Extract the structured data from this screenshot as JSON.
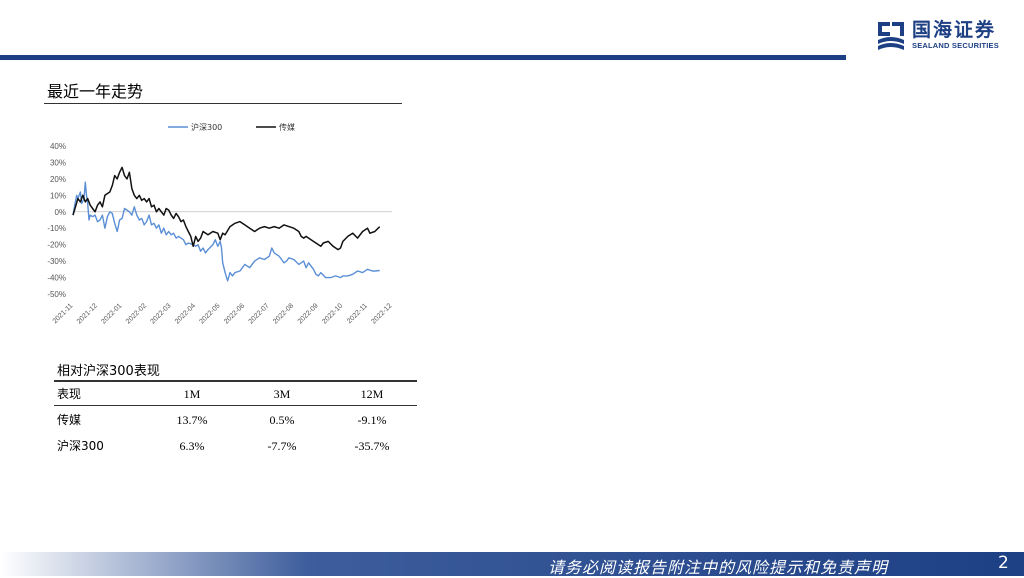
{
  "header": {
    "logo_cn": "国海证券",
    "logo_en": "SEALAND SECURITIES",
    "brand_color": "#1d3f84"
  },
  "section_title": "最近一年走势",
  "chart_data": {
    "type": "line",
    "title": "",
    "xlabel": "",
    "ylabel": "",
    "ylim": [
      -50,
      40
    ],
    "yticks": [
      40,
      30,
      20,
      10,
      0,
      -10,
      -20,
      -30,
      -40,
      -50
    ],
    "ytick_labels": [
      "40%",
      "30%",
      "20%",
      "10%",
      "0%",
      "-10%",
      "-20%",
      "-30%",
      "-40%",
      "-50%"
    ],
    "x_ticks": [
      "2021-11",
      "2021-12",
      "2022-01",
      "2022-02",
      "2022-03",
      "2022-04",
      "2022-05",
      "2022-06",
      "2022-07",
      "2022-08",
      "2022-09",
      "2022-10",
      "2022-11",
      "2022-12"
    ],
    "legend_position": "top-center",
    "grid": false,
    "series": [
      {
        "name": "沪深300",
        "color": "#5b8fd6",
        "points": [
          [
            0,
            -2
          ],
          [
            0.08,
            5
          ],
          [
            0.15,
            10
          ],
          [
            0.2,
            8
          ],
          [
            0.3,
            12
          ],
          [
            0.35,
            5
          ],
          [
            0.45,
            8
          ],
          [
            0.5,
            18
          ],
          [
            0.55,
            10
          ],
          [
            0.6,
            5
          ],
          [
            0.65,
            -5
          ],
          [
            0.7,
            -2
          ],
          [
            0.8,
            -3
          ],
          [
            0.9,
            -2
          ],
          [
            1,
            -6
          ],
          [
            1.1,
            -5
          ],
          [
            1.2,
            -2
          ],
          [
            1.3,
            -10
          ],
          [
            1.4,
            -3
          ],
          [
            1.5,
            0
          ],
          [
            1.6,
            -1
          ],
          [
            1.7,
            -7
          ],
          [
            1.8,
            -12
          ],
          [
            1.9,
            -5
          ],
          [
            2,
            -4
          ],
          [
            2.1,
            2
          ],
          [
            2.2,
            1
          ],
          [
            2.3,
            0
          ],
          [
            2.4,
            -2
          ],
          [
            2.5,
            3
          ],
          [
            2.6,
            -2
          ],
          [
            2.7,
            -5
          ],
          [
            2.8,
            -4
          ],
          [
            2.9,
            -8
          ],
          [
            3,
            -6
          ],
          [
            3.1,
            -2
          ],
          [
            3.2,
            -8
          ],
          [
            3.3,
            -7
          ],
          [
            3.4,
            -10
          ],
          [
            3.5,
            -8
          ],
          [
            3.6,
            -13
          ],
          [
            3.7,
            -10
          ],
          [
            3.8,
            -14
          ],
          [
            3.9,
            -12
          ],
          [
            4,
            -14
          ],
          [
            4.1,
            -13
          ],
          [
            4.2,
            -16
          ],
          [
            4.3,
            -15
          ],
          [
            4.5,
            -17
          ],
          [
            4.6,
            -20
          ],
          [
            4.7,
            -19
          ],
          [
            4.9,
            -20
          ],
          [
            5,
            -21
          ],
          [
            5.1,
            -20
          ],
          [
            5.2,
            -24
          ],
          [
            5.3,
            -22
          ],
          [
            5.4,
            -25
          ],
          [
            5.5,
            -23
          ],
          [
            5.7,
            -20
          ],
          [
            5.8,
            -17
          ],
          [
            5.9,
            -21
          ],
          [
            6,
            -18
          ],
          [
            6.05,
            -22
          ],
          [
            6.1,
            -31
          ],
          [
            6.2,
            -37
          ],
          [
            6.3,
            -42
          ],
          [
            6.4,
            -37
          ],
          [
            6.5,
            -39
          ],
          [
            6.6,
            -37
          ],
          [
            6.8,
            -36
          ],
          [
            7,
            -32
          ],
          [
            7.2,
            -34
          ],
          [
            7.4,
            -30
          ],
          [
            7.6,
            -28
          ],
          [
            7.8,
            -29
          ],
          [
            8,
            -27
          ],
          [
            8.1,
            -22
          ],
          [
            8.2,
            -25
          ],
          [
            8.4,
            -27
          ],
          [
            8.5,
            -29
          ],
          [
            8.6,
            -31
          ],
          [
            8.7,
            -30
          ],
          [
            8.8,
            -28
          ],
          [
            9,
            -29
          ],
          [
            9.2,
            -32
          ],
          [
            9.4,
            -30
          ],
          [
            9.5,
            -34
          ],
          [
            9.6,
            -31
          ],
          [
            9.8,
            -35
          ],
          [
            9.9,
            -38
          ],
          [
            10,
            -39
          ],
          [
            10.1,
            -37
          ],
          [
            10.3,
            -40
          ],
          [
            10.5,
            -40
          ],
          [
            10.7,
            -39
          ],
          [
            10.9,
            -40
          ],
          [
            11,
            -39
          ],
          [
            11.2,
            -39
          ],
          [
            11.4,
            -38
          ],
          [
            11.6,
            -36
          ],
          [
            11.8,
            -37
          ],
          [
            12,
            -35
          ],
          [
            12.2,
            -36
          ],
          [
            12.3,
            -36
          ],
          [
            12.5,
            -35.7
          ]
        ]
      },
      {
        "name": "传媒",
        "color": "#111111",
        "points": [
          [
            0,
            -2
          ],
          [
            0.1,
            3
          ],
          [
            0.2,
            8
          ],
          [
            0.3,
            6
          ],
          [
            0.4,
            10
          ],
          [
            0.5,
            6
          ],
          [
            0.6,
            8
          ],
          [
            0.7,
            4
          ],
          [
            0.8,
            2
          ],
          [
            0.9,
            0
          ],
          [
            1,
            4
          ],
          [
            1.1,
            6
          ],
          [
            1.2,
            3
          ],
          [
            1.3,
            10
          ],
          [
            1.5,
            12
          ],
          [
            1.6,
            16
          ],
          [
            1.7,
            22
          ],
          [
            1.8,
            20
          ],
          [
            1.9,
            24
          ],
          [
            2,
            27
          ],
          [
            2.1,
            22
          ],
          [
            2.2,
            20
          ],
          [
            2.3,
            24
          ],
          [
            2.4,
            14
          ],
          [
            2.5,
            10
          ],
          [
            2.6,
            8
          ],
          [
            2.7,
            10
          ],
          [
            2.8,
            7
          ],
          [
            2.9,
            8
          ],
          [
            3,
            6
          ],
          [
            3.1,
            8
          ],
          [
            3.2,
            3
          ],
          [
            3.3,
            4
          ],
          [
            3.4,
            0
          ],
          [
            3.5,
            2
          ],
          [
            3.6,
            0
          ],
          [
            3.7,
            -2
          ],
          [
            3.8,
            2
          ],
          [
            3.9,
            1
          ],
          [
            4,
            -2
          ],
          [
            4.1,
            -4
          ],
          [
            4.2,
            -1
          ],
          [
            4.3,
            -3
          ],
          [
            4.4,
            -6
          ],
          [
            4.5,
            -5
          ],
          [
            4.6,
            -9
          ],
          [
            4.7,
            -12
          ],
          [
            4.8,
            -15
          ],
          [
            4.9,
            -21
          ],
          [
            5,
            -15
          ],
          [
            5.1,
            -18
          ],
          [
            5.2,
            -16
          ],
          [
            5.3,
            -12
          ],
          [
            5.5,
            -14
          ],
          [
            5.7,
            -12
          ],
          [
            5.9,
            -13
          ],
          [
            6,
            -17
          ],
          [
            6.1,
            -13
          ],
          [
            6.2,
            -14
          ],
          [
            6.4,
            -9
          ],
          [
            6.6,
            -7
          ],
          [
            6.8,
            -6
          ],
          [
            7,
            -8
          ],
          [
            7.2,
            -10
          ],
          [
            7.4,
            -12
          ],
          [
            7.6,
            -10
          ],
          [
            7.8,
            -9
          ],
          [
            8,
            -10
          ],
          [
            8.2,
            -9
          ],
          [
            8.4,
            -10
          ],
          [
            8.6,
            -8
          ],
          [
            8.8,
            -9
          ],
          [
            9,
            -10
          ],
          [
            9.2,
            -12
          ],
          [
            9.3,
            -15
          ],
          [
            9.4,
            -16
          ],
          [
            9.5,
            -15
          ],
          [
            9.7,
            -17
          ],
          [
            9.9,
            -19
          ],
          [
            10.1,
            -21
          ],
          [
            10.2,
            -19
          ],
          [
            10.4,
            -18
          ],
          [
            10.6,
            -21
          ],
          [
            10.8,
            -23
          ],
          [
            10.9,
            -22
          ],
          [
            11,
            -18
          ],
          [
            11.2,
            -15
          ],
          [
            11.4,
            -13
          ],
          [
            11.6,
            -16
          ],
          [
            11.8,
            -12
          ],
          [
            12,
            -10
          ],
          [
            12.1,
            -13
          ],
          [
            12.3,
            -12
          ],
          [
            12.5,
            -9.1
          ]
        ]
      }
    ]
  },
  "table": {
    "title": "相对沪深300表现",
    "headers": [
      "表现",
      "1M",
      "3M",
      "12M"
    ],
    "rows": [
      [
        "传媒",
        "13.7%",
        "0.5%",
        "-9.1%"
      ],
      [
        "沪深300",
        "6.3%",
        "-7.7%",
        "-35.7%"
      ]
    ]
  },
  "footer": {
    "disclaimer": "请务必阅读报告附注中的风险提示和免责声明",
    "page_number": "2"
  }
}
